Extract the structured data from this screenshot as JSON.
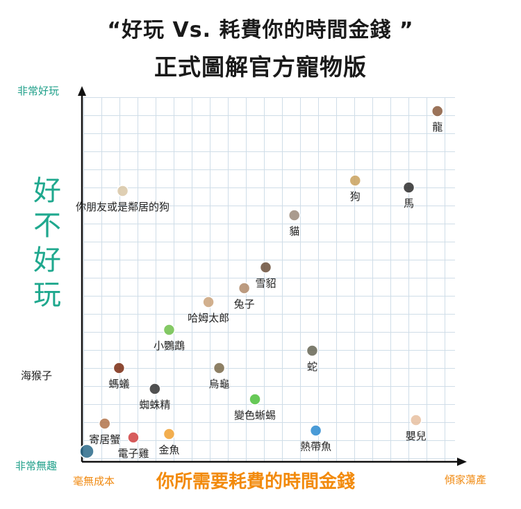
{
  "title_line1": "“好玩 Vs. 耗費你的時間金錢 ”",
  "title_line2": "正式圖解官方寵物版",
  "y_axis": {
    "label_chars": [
      "好",
      "不",
      "好",
      "玩"
    ],
    "top_label": "非常好玩",
    "bottom_label": "非常無趣"
  },
  "x_axis": {
    "label": "你所需要耗費的時間金錢",
    "left_label": "毫無成本",
    "right_label": "傾家蕩產"
  },
  "colors": {
    "y_axis_text": "#1fa88e",
    "x_axis_text": "#f28a0c",
    "grid": "#cfdde8"
  },
  "chart_data": {
    "type": "scatter",
    "title": "“好玩 Vs. 耗費你的時間金錢 ” 正式圖解官方寵物版",
    "xlabel": "你所需要耗費的時間金錢",
    "ylabel": "好不好玩",
    "xlim": [
      0,
      10
    ],
    "ylim": [
      0,
      10
    ],
    "grid": true,
    "points": [
      {
        "label": "龍",
        "x": 9.8,
        "y": 9.8
      },
      {
        "label": "狗",
        "x": 7.5,
        "y": 7.8
      },
      {
        "label": "馬",
        "x": 9.0,
        "y": 7.6
      },
      {
        "label": "你朋友或是鄰居的狗",
        "x": 1.0,
        "y": 7.5
      },
      {
        "label": "貓",
        "x": 5.8,
        "y": 6.8
      },
      {
        "label": "雪貂",
        "x": 5.0,
        "y": 5.3
      },
      {
        "label": "兔子",
        "x": 4.4,
        "y": 4.7
      },
      {
        "label": "哈姆太郎",
        "x": 3.4,
        "y": 4.3
      },
      {
        "label": "小鸚鵡",
        "x": 2.3,
        "y": 3.5
      },
      {
        "label": "蛇",
        "x": 6.3,
        "y": 2.9
      },
      {
        "label": "烏龜",
        "x": 3.7,
        "y": 2.4
      },
      {
        "label": "螞蟻",
        "x": 0.9,
        "y": 2.4
      },
      {
        "label": "蜘蛛精",
        "x": 1.9,
        "y": 1.8
      },
      {
        "label": "變色蜥蜴",
        "x": 4.7,
        "y": 1.5
      },
      {
        "label": "寄居蟹",
        "x": 0.5,
        "y": 0.8
      },
      {
        "label": "金魚",
        "x": 2.3,
        "y": 0.5
      },
      {
        "label": "電子雞",
        "x": 1.3,
        "y": 0.4
      },
      {
        "label": "熱帶魚",
        "x": 6.4,
        "y": 0.6
      },
      {
        "label": "嬰兒",
        "x": 9.2,
        "y": 0.9
      },
      {
        "label": "海猴子",
        "x": 0.0,
        "y": 0.0
      }
    ]
  }
}
